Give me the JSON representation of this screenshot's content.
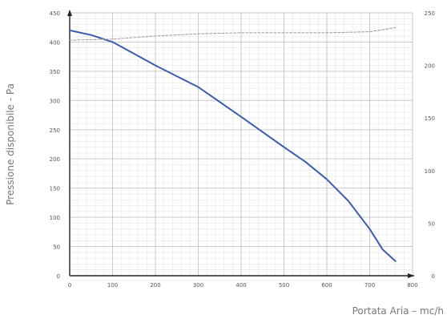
{
  "chart_data": {
    "type": "line",
    "xlabel": "Portata Aria – mc/h",
    "ylabel": "Pressione disponibile - Pa",
    "xlim": [
      0,
      800
    ],
    "ylim": [
      0,
      450
    ],
    "y2lim": [
      0,
      250
    ],
    "x_ticks": [
      0,
      100,
      200,
      300,
      400,
      500,
      600,
      700,
      800
    ],
    "y_ticks": [
      0,
      50,
      100,
      150,
      200,
      250,
      300,
      350,
      400,
      450
    ],
    "y2_ticks": [
      0,
      50,
      100,
      150,
      200,
      250
    ],
    "grid": true,
    "series": [
      {
        "axis": "left",
        "style": "solid",
        "color": "#3a5cb0",
        "x": [
          0,
          50,
          100,
          150,
          200,
          300,
          400,
          500,
          550,
          600,
          650,
          700,
          730,
          760
        ],
        "y": [
          420,
          412,
          400,
          380,
          360,
          323,
          272,
          220,
          195,
          165,
          128,
          80,
          45,
          25
        ]
      },
      {
        "axis": "right",
        "style": "dashed",
        "color": "#999999",
        "x": [
          0,
          100,
          200,
          300,
          400,
          500,
          600,
          700,
          730,
          760
        ],
        "y": [
          224,
          225,
          228,
          230,
          231,
          231,
          231,
          232,
          234,
          236
        ]
      }
    ]
  }
}
